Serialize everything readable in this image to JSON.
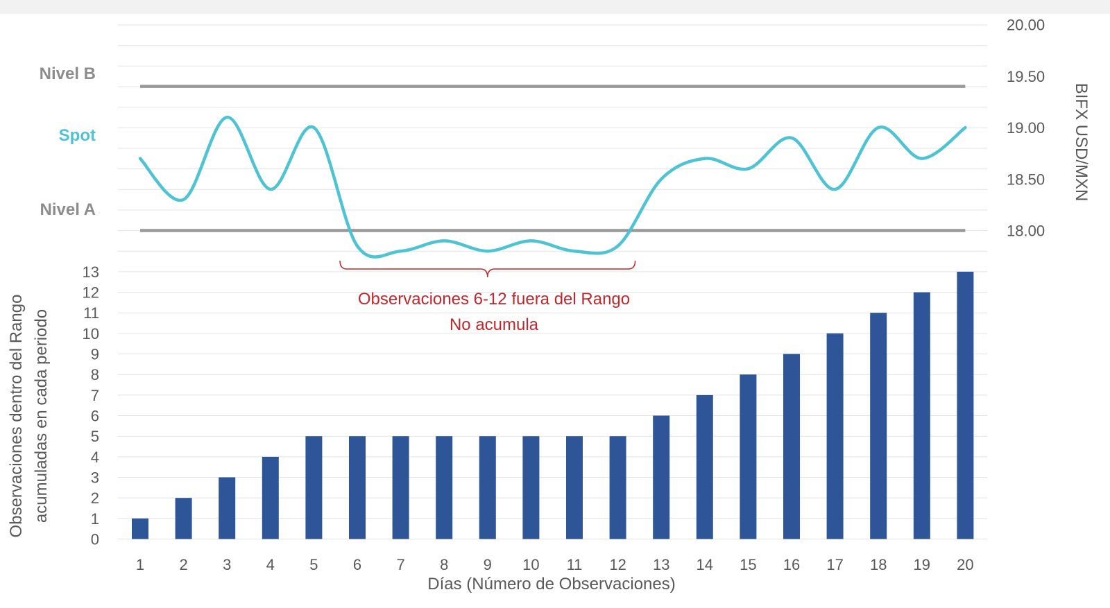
{
  "chart_data": {
    "type": "combo-bar-line",
    "title": "",
    "x": [
      1,
      2,
      3,
      4,
      5,
      6,
      7,
      8,
      9,
      10,
      11,
      12,
      13,
      14,
      15,
      16,
      17,
      18,
      19,
      20
    ],
    "xlabel": "Días (Número de Observaciones)",
    "bars": {
      "name": "Observaciones dentro del Rango acumuladas en cada periodo",
      "values": [
        1,
        2,
        3,
        4,
        5,
        5,
        5,
        5,
        5,
        5,
        5,
        5,
        6,
        7,
        8,
        9,
        10,
        11,
        12,
        13
      ],
      "ylim": [
        0,
        13
      ],
      "ylabel_lines": [
        "Observaciones dentro del Rango",
        "acumuladas en cada periodo"
      ],
      "yticks": [
        0,
        1,
        2,
        3,
        4,
        5,
        6,
        7,
        8,
        9,
        10,
        11,
        12,
        13
      ],
      "color": "#2e5597"
    },
    "line": {
      "name": "Spot",
      "values": [
        18.7,
        18.3,
        19.1,
        18.4,
        19.0,
        17.85,
        17.8,
        17.9,
        17.8,
        17.9,
        17.8,
        17.85,
        18.5,
        18.7,
        18.6,
        18.9,
        18.4,
        19.0,
        18.7,
        19.0
      ],
      "ylim": [
        17.5,
        20.0
      ],
      "ylabel": "BIFX USD/MXN",
      "yticks": [
        "18.00",
        "18.50",
        "19.00",
        "19.50",
        "20.00"
      ],
      "color": "#4ec3d2"
    },
    "levels": [
      {
        "name": "Nivel B",
        "value": 19.4,
        "color": "#999999"
      },
      {
        "name": "Nivel A",
        "value": 18.0,
        "color": "#999999"
      }
    ],
    "series_labels": {
      "spot": "Spot",
      "nivel_b": "Nivel B",
      "nivel_a": "Nivel A"
    },
    "annotation": {
      "range_from": 6,
      "range_to": 12,
      "line1": "Observaciones 6-12 fuera del Rango",
      "line2": "No acumula",
      "color": "#c0282d"
    },
    "grid": true
  }
}
